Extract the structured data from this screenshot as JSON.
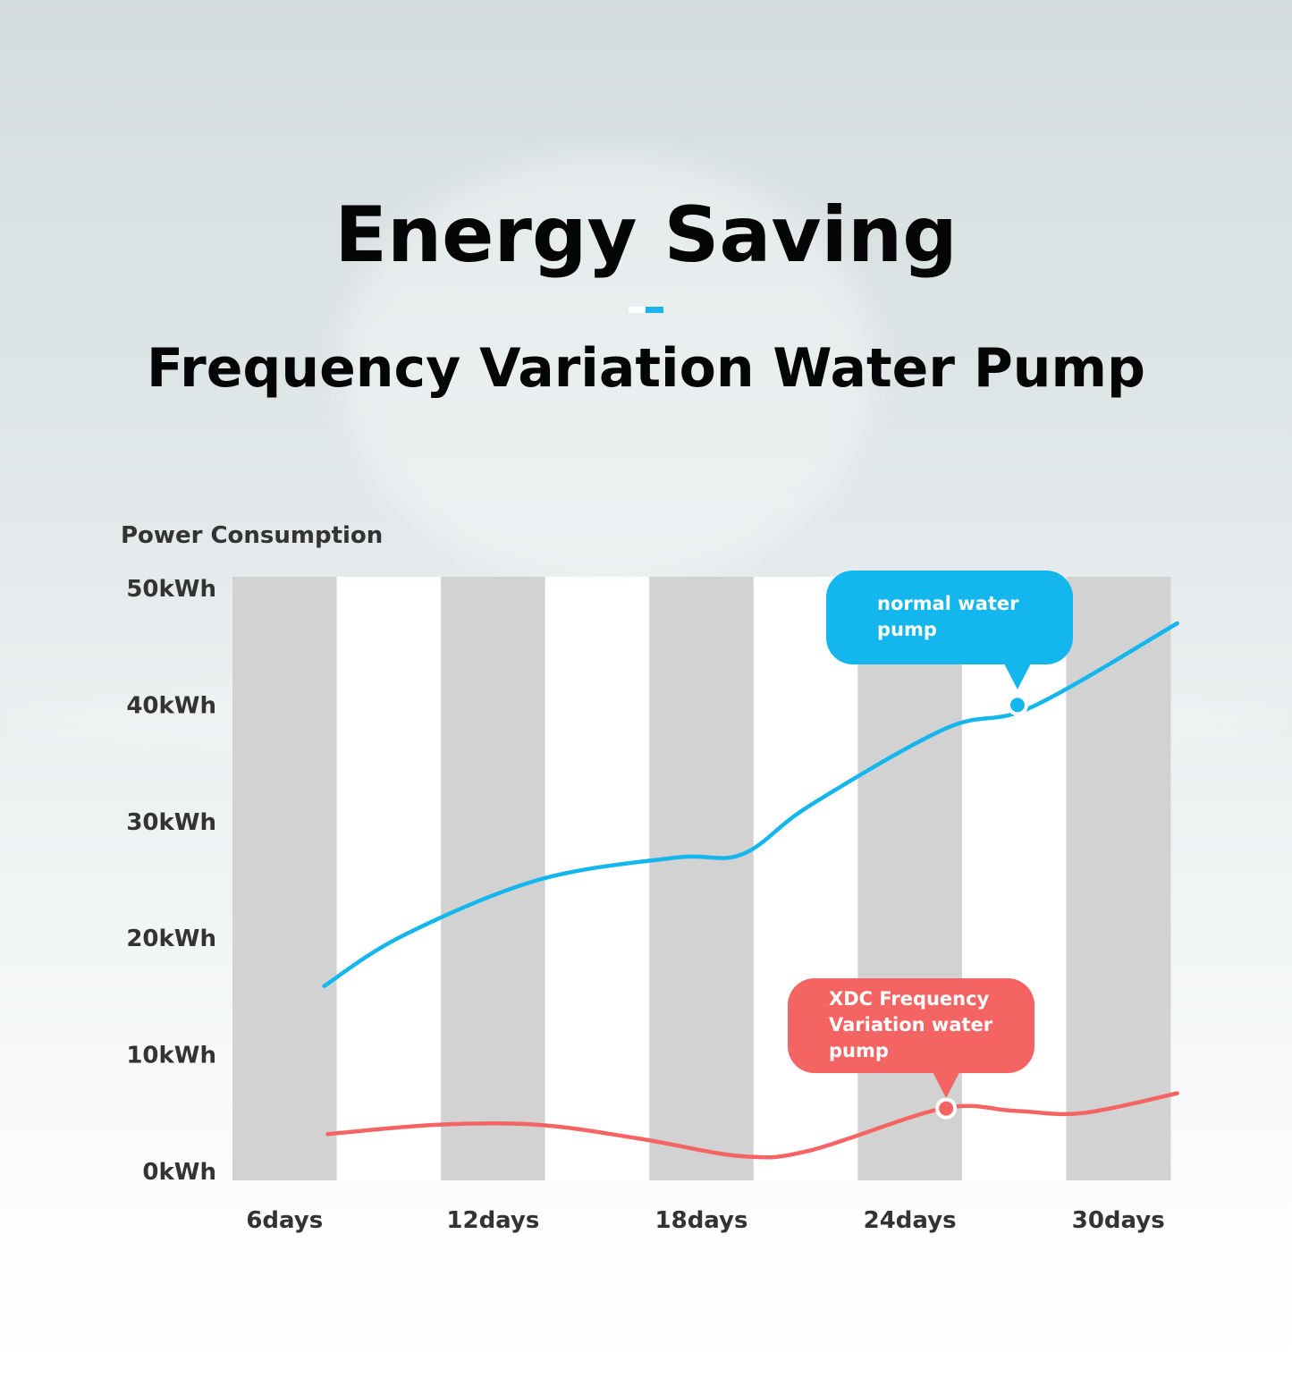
{
  "title": "Energy Saving",
  "subtitle": "Frequency Variation Water Pump",
  "colors": {
    "normal": "#14b6ee",
    "xdc": "#f46463",
    "band_gray": "#d2d2d2",
    "band_white": "#ffffff",
    "accent_dash": "#1bb5ec"
  },
  "chart_data": {
    "type": "line",
    "title": "",
    "ylabel": "Power Consumption",
    "xlabel": "",
    "ylim": [
      0,
      50
    ],
    "y_unit": "kWh",
    "y_tick_labels": [
      "50kWh",
      "40kWh",
      "30kWh",
      "20kWh",
      "10kWh",
      "0kWh"
    ],
    "categories": [
      "6days",
      "12days",
      "18days",
      "24days",
      "30days"
    ],
    "grid": false,
    "series": [
      {
        "name": "normal water pump",
        "color": "#14b6ee",
        "x": [
          5.7,
          8,
          12,
          16,
          18,
          20,
          24,
          26.5,
          30.8
        ],
        "values": [
          15.9,
          20.2,
          25.0,
          26.9,
          27.2,
          31.4,
          38.0,
          39.8,
          47.0
        ],
        "highlight": {
          "x": 26.1,
          "value": 40.0
        }
      },
      {
        "name": "XDC Frequency Variation water pump",
        "color": "#f46463",
        "x": [
          5.8,
          9,
          12,
          15,
          18,
          20,
          23.9,
          26,
          28,
          30.8
        ],
        "values": [
          3.2,
          4.0,
          4.0,
          2.8,
          1.3,
          1.8,
          5.4,
          5.2,
          5.0,
          6.7
        ],
        "highlight": {
          "x": 24.0,
          "value": 5.4
        }
      }
    ]
  },
  "callouts": {
    "normal": [
      "normal water",
      "pump"
    ],
    "xdc": [
      "XDC Frequency",
      "Variation water",
      "pump"
    ]
  }
}
